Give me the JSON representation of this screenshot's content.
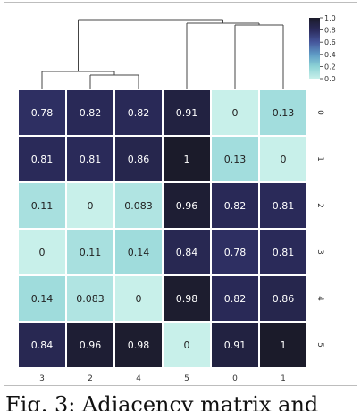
{
  "caption": "Fig. 3: Adjacency matrix and",
  "chart_data": {
    "type": "heatmap",
    "x_labels": [
      "3",
      "2",
      "4",
      "5",
      "0",
      "1"
    ],
    "y_labels": [
      "0",
      "1",
      "2",
      "3",
      "4",
      "5"
    ],
    "values": [
      [
        0.78,
        0.82,
        0.82,
        0.91,
        0,
        0.13
      ],
      [
        0.81,
        0.81,
        0.86,
        1,
        0.13,
        0
      ],
      [
        0.11,
        0,
        0.083,
        0.96,
        0.82,
        0.81
      ],
      [
        0,
        0.11,
        0.14,
        0.84,
        0.78,
        0.81
      ],
      [
        0.14,
        0.083,
        0,
        0.98,
        0.82,
        0.86
      ],
      [
        0.84,
        0.96,
        0.98,
        0,
        0.91,
        1
      ]
    ],
    "cell_labels": [
      [
        "0.78",
        "0.82",
        "0.82",
        "0.91",
        "0",
        "0.13"
      ],
      [
        "0.81",
        "0.81",
        "0.86",
        "1",
        "0.13",
        "0"
      ],
      [
        "0.11",
        "0",
        "0.083",
        "0.96",
        "0.82",
        "0.81"
      ],
      [
        "0",
        "0.11",
        "0.14",
        "0.84",
        "0.78",
        "0.81"
      ],
      [
        "0.14",
        "0.083",
        "0",
        "0.98",
        "0.82",
        "0.86"
      ],
      [
        "0.84",
        "0.96",
        "0.98",
        "0",
        "0.91",
        "1"
      ]
    ],
    "colorbar": {
      "range": [
        0,
        1
      ],
      "ticks": [
        "1.0",
        "0.8",
        "0.6",
        "0.4",
        "0.2",
        "0.0"
      ],
      "colormap": [
        "#c8f0ea",
        "#8dd3d6",
        "#5e9ac5",
        "#46579c",
        "#2b2b5c",
        "#1b1b2a"
      ]
    },
    "dendrogram": "column clustering shown above heatmap"
  }
}
